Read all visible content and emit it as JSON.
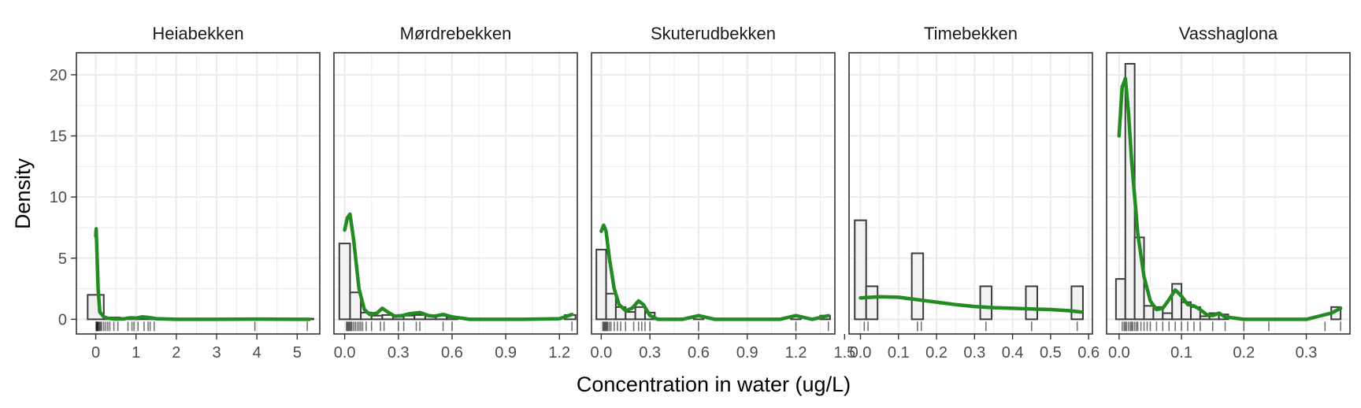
{
  "chart_data": {
    "type": "histogram-density-facets",
    "xlabel": "Concentration in water (ug/L)",
    "ylabel": "Density",
    "ylim": [
      -1.2,
      21.8
    ],
    "yticks": [
      0,
      5,
      10,
      15,
      20
    ],
    "grid": true,
    "colors": {
      "density_line": "#228B22",
      "bar_fill": "#f2f2f2",
      "bar_stroke": "#3b3b3b",
      "panel_border": "#333333",
      "grid": "#ebebeb"
    },
    "facets": [
      {
        "name": "Heiabekken",
        "xlim": [
          -0.48,
          5.56
        ],
        "xticks": [
          0,
          1,
          2,
          3,
          4,
          5
        ],
        "xtick_labels": [
          "0",
          "1",
          "2",
          "3",
          "4",
          "5"
        ],
        "bins": [
          [
            -0.2,
            0.2,
            2.0
          ],
          [
            0.2,
            0.6,
            0.15
          ],
          [
            0.6,
            1.0,
            0.05
          ],
          [
            1.0,
            1.4,
            0.18
          ],
          [
            1.4,
            1.8,
            0.05
          ],
          [
            1.8,
            3.8,
            0.0
          ],
          [
            3.8,
            4.2,
            0.05
          ],
          [
            4.2,
            5.0,
            0.0
          ],
          [
            5.0,
            5.4,
            0.05
          ]
        ],
        "density": [
          [
            0.0,
            6.8
          ],
          [
            0.01,
            7.4
          ],
          [
            0.03,
            5.5
          ],
          [
            0.06,
            2.5
          ],
          [
            0.1,
            0.6
          ],
          [
            0.2,
            0.2
          ],
          [
            0.3,
            0.08
          ],
          [
            0.5,
            0.02
          ],
          [
            0.7,
            0.04
          ],
          [
            0.85,
            0.12
          ],
          [
            1.0,
            0.1
          ],
          [
            1.15,
            0.2
          ],
          [
            1.3,
            0.15
          ],
          [
            1.5,
            0.05
          ],
          [
            2.0,
            0.0
          ],
          [
            3.0,
            0.0
          ],
          [
            4.0,
            0.02
          ],
          [
            5.0,
            0.0
          ],
          [
            5.3,
            0.0
          ]
        ],
        "rug": [
          0.01,
          0.02,
          0.03,
          0.04,
          0.05,
          0.06,
          0.08,
          0.1,
          0.12,
          0.15,
          0.2,
          0.25,
          0.3,
          0.35,
          0.45,
          0.55,
          0.8,
          0.9,
          0.95,
          1.05,
          1.2,
          1.3,
          1.35,
          1.45,
          3.95,
          5.25
        ]
      },
      {
        "name": "Mørdrebekken",
        "xlim": [
          -0.06,
          1.3
        ],
        "xticks": [
          0.0,
          0.3,
          0.6,
          0.9,
          1.2
        ],
        "xtick_labels": [
          "0.0",
          "0.3",
          "0.6",
          "0.9",
          "1.2"
        ],
        "bins": [
          [
            -0.03,
            0.03,
            6.2
          ],
          [
            0.03,
            0.09,
            2.2
          ],
          [
            0.09,
            0.15,
            0.55
          ],
          [
            0.15,
            0.21,
            0.3
          ],
          [
            0.21,
            0.27,
            0.35
          ],
          [
            0.27,
            0.33,
            0.2
          ],
          [
            0.33,
            0.39,
            0.3
          ],
          [
            0.39,
            0.45,
            0.35
          ],
          [
            0.45,
            0.51,
            0.25
          ],
          [
            0.51,
            0.57,
            0.3
          ],
          [
            0.57,
            0.63,
            0.15
          ],
          [
            0.63,
            1.23,
            0.0
          ],
          [
            1.23,
            1.29,
            0.35
          ]
        ],
        "density": [
          [
            0.0,
            7.3
          ],
          [
            0.015,
            8.3
          ],
          [
            0.03,
            8.6
          ],
          [
            0.05,
            6.5
          ],
          [
            0.08,
            2.5
          ],
          [
            0.11,
            0.8
          ],
          [
            0.14,
            0.4
          ],
          [
            0.18,
            0.5
          ],
          [
            0.21,
            0.9
          ],
          [
            0.24,
            0.6
          ],
          [
            0.28,
            0.25
          ],
          [
            0.32,
            0.3
          ],
          [
            0.36,
            0.45
          ],
          [
            0.42,
            0.55
          ],
          [
            0.47,
            0.3
          ],
          [
            0.5,
            0.25
          ],
          [
            0.55,
            0.4
          ],
          [
            0.6,
            0.2
          ],
          [
            0.7,
            0.0
          ],
          [
            1.0,
            0.0
          ],
          [
            1.2,
            0.05
          ],
          [
            1.27,
            0.4
          ]
        ],
        "rug": [
          0.01,
          0.015,
          0.02,
          0.025,
          0.03,
          0.035,
          0.04,
          0.05,
          0.06,
          0.07,
          0.08,
          0.09,
          0.1,
          0.12,
          0.15,
          0.2,
          0.22,
          0.3,
          0.33,
          0.4,
          0.42,
          0.55,
          0.6,
          1.27
        ]
      },
      {
        "name": "Skuterudbekken",
        "xlim": [
          -0.06,
          1.44
        ],
        "xticks": [
          0.0,
          0.3,
          0.6,
          0.9,
          1.2,
          1.5
        ],
        "xtick_labels": [
          "0.0",
          "0.3",
          "0.6",
          "0.9",
          "1.2",
          "1.5"
        ],
        "bins": [
          [
            -0.03,
            0.03,
            5.7
          ],
          [
            0.03,
            0.09,
            2.1
          ],
          [
            0.09,
            0.15,
            1.0
          ],
          [
            0.15,
            0.21,
            0.6
          ],
          [
            0.21,
            0.27,
            1.0
          ],
          [
            0.27,
            0.33,
            0.55
          ],
          [
            0.33,
            0.57,
            0.0
          ],
          [
            0.57,
            0.63,
            0.25
          ],
          [
            0.63,
            1.17,
            0.0
          ],
          [
            1.17,
            1.23,
            0.25
          ],
          [
            1.23,
            1.35,
            0.0
          ],
          [
            1.35,
            1.41,
            0.3
          ]
        ],
        "density": [
          [
            0.0,
            7.2
          ],
          [
            0.015,
            7.7
          ],
          [
            0.03,
            7.2
          ],
          [
            0.05,
            5.0
          ],
          [
            0.08,
            2.5
          ],
          [
            0.11,
            1.2
          ],
          [
            0.15,
            0.7
          ],
          [
            0.19,
            0.9
          ],
          [
            0.23,
            1.5
          ],
          [
            0.26,
            1.2
          ],
          [
            0.3,
            0.3
          ],
          [
            0.35,
            0.0
          ],
          [
            0.5,
            0.0
          ],
          [
            0.6,
            0.3
          ],
          [
            0.7,
            0.0
          ],
          [
            1.1,
            0.0
          ],
          [
            1.2,
            0.3
          ],
          [
            1.3,
            0.0
          ],
          [
            1.4,
            0.3
          ]
        ],
        "rug": [
          0.01,
          0.015,
          0.02,
          0.025,
          0.03,
          0.035,
          0.04,
          0.05,
          0.06,
          0.08,
          0.1,
          0.12,
          0.15,
          0.2,
          0.23,
          0.25,
          0.27,
          0.3,
          0.6,
          1.2,
          1.4
        ]
      },
      {
        "name": "Timebekken",
        "xlim": [
          -0.03,
          0.61
        ],
        "xticks": [
          0.0,
          0.1,
          0.2,
          0.3,
          0.4,
          0.5,
          0.6
        ],
        "xtick_labels": [
          "0.0",
          "0.1",
          "0.2",
          "0.3",
          "0.4",
          "0.5",
          "0.6"
        ],
        "bins": [
          [
            -0.015,
            0.015,
            8.1
          ],
          [
            0.015,
            0.045,
            2.7
          ],
          [
            0.045,
            0.135,
            0.0
          ],
          [
            0.135,
            0.165,
            5.4
          ],
          [
            0.165,
            0.315,
            0.0
          ],
          [
            0.315,
            0.345,
            2.7
          ],
          [
            0.345,
            0.435,
            0.0
          ],
          [
            0.435,
            0.465,
            2.7
          ],
          [
            0.465,
            0.555,
            0.0
          ],
          [
            0.555,
            0.585,
            2.7
          ]
        ],
        "density": [
          [
            0.0,
            1.75
          ],
          [
            0.05,
            1.85
          ],
          [
            0.1,
            1.8
          ],
          [
            0.15,
            1.6
          ],
          [
            0.2,
            1.4
          ],
          [
            0.25,
            1.2
          ],
          [
            0.3,
            1.05
          ],
          [
            0.35,
            0.95
          ],
          [
            0.4,
            0.9
          ],
          [
            0.45,
            0.85
          ],
          [
            0.5,
            0.8
          ],
          [
            0.55,
            0.7
          ],
          [
            0.58,
            0.6
          ]
        ],
        "rug": [
          0.01,
          0.02,
          0.15,
          0.16,
          0.33,
          0.45,
          0.57
        ]
      },
      {
        "name": "Vasshaglona",
        "xlim": [
          -0.02,
          0.37
        ],
        "xticks": [
          0.0,
          0.1,
          0.2,
          0.3
        ],
        "xtick_labels": [
          "0.0",
          "0.1",
          "0.2",
          "0.3"
        ],
        "bins": [
          [
            -0.005,
            0.01,
            3.3
          ],
          [
            0.01,
            0.025,
            20.9
          ],
          [
            0.025,
            0.04,
            6.7
          ],
          [
            0.04,
            0.055,
            1.1
          ],
          [
            0.055,
            0.07,
            1.0
          ],
          [
            0.07,
            0.085,
            0.5
          ],
          [
            0.085,
            0.1,
            2.9
          ],
          [
            0.1,
            0.115,
            1.4
          ],
          [
            0.115,
            0.13,
            1.0
          ],
          [
            0.13,
            0.145,
            0.25
          ],
          [
            0.145,
            0.16,
            0.5
          ],
          [
            0.16,
            0.175,
            0.4
          ],
          [
            0.175,
            0.34,
            0.0
          ],
          [
            0.34,
            0.355,
            1.0
          ]
        ],
        "density": [
          [
            0.0,
            15.0
          ],
          [
            0.005,
            19.0
          ],
          [
            0.01,
            19.7
          ],
          [
            0.015,
            17.0
          ],
          [
            0.02,
            13.0
          ],
          [
            0.03,
            7.0
          ],
          [
            0.04,
            3.5
          ],
          [
            0.05,
            1.5
          ],
          [
            0.06,
            0.8
          ],
          [
            0.07,
            0.9
          ],
          [
            0.08,
            1.6
          ],
          [
            0.09,
            2.4
          ],
          [
            0.1,
            1.9
          ],
          [
            0.11,
            1.2
          ],
          [
            0.12,
            1.1
          ],
          [
            0.13,
            0.8
          ],
          [
            0.14,
            0.4
          ],
          [
            0.15,
            0.3
          ],
          [
            0.16,
            0.5
          ],
          [
            0.17,
            0.2
          ],
          [
            0.2,
            0.0
          ],
          [
            0.3,
            0.0
          ],
          [
            0.34,
            0.5
          ],
          [
            0.355,
            0.9
          ]
        ],
        "rug": [
          0.005,
          0.008,
          0.01,
          0.012,
          0.015,
          0.018,
          0.02,
          0.022,
          0.025,
          0.028,
          0.03,
          0.035,
          0.04,
          0.045,
          0.05,
          0.06,
          0.07,
          0.08,
          0.09,
          0.1,
          0.11,
          0.12,
          0.13,
          0.15,
          0.17,
          0.2,
          0.24,
          0.33,
          0.355
        ]
      }
    ]
  }
}
